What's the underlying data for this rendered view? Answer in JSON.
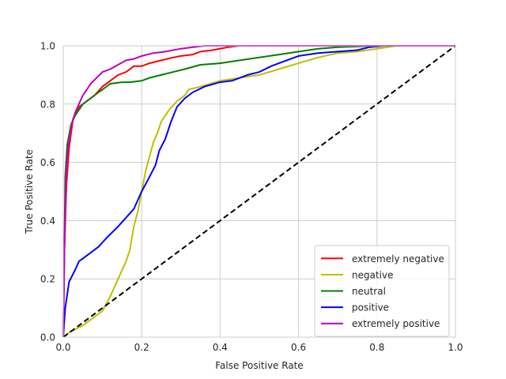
{
  "chart_data": {
    "type": "line",
    "title": "",
    "xlabel": "False Positive Rate",
    "ylabel": "True Positive Rate",
    "xlim": [
      0,
      1
    ],
    "ylim": [
      0,
      1
    ],
    "xticks": [
      "0.0",
      "0.2",
      "0.4",
      "0.6",
      "0.8",
      "1.0"
    ],
    "yticks": [
      "0.0",
      "0.2",
      "0.4",
      "0.6",
      "0.8",
      "1.0"
    ],
    "grid": true,
    "legend_position": "lower-right",
    "series": [
      {
        "name": "extremely negative",
        "color": "#ff0000",
        "points": [
          [
            0,
            0
          ],
          [
            0.003,
            0.3
          ],
          [
            0.008,
            0.52
          ],
          [
            0.015,
            0.65
          ],
          [
            0.025,
            0.75
          ],
          [
            0.04,
            0.79
          ],
          [
            0.06,
            0.81
          ],
          [
            0.08,
            0.83
          ],
          [
            0.1,
            0.86
          ],
          [
            0.12,
            0.88
          ],
          [
            0.14,
            0.9
          ],
          [
            0.16,
            0.91
          ],
          [
            0.18,
            0.93
          ],
          [
            0.2,
            0.93
          ],
          [
            0.22,
            0.94
          ],
          [
            0.25,
            0.95
          ],
          [
            0.28,
            0.96
          ],
          [
            0.3,
            0.965
          ],
          [
            0.33,
            0.97
          ],
          [
            0.35,
            0.98
          ],
          [
            0.38,
            0.985
          ],
          [
            0.42,
            0.995
          ],
          [
            0.45,
            1.0
          ],
          [
            0.6,
            1.0
          ],
          [
            0.8,
            1.0
          ],
          [
            1.0,
            1.0
          ]
        ]
      },
      {
        "name": "negative",
        "color": "#bfbf00",
        "points": [
          [
            0,
            0
          ],
          [
            0.02,
            0.02
          ],
          [
            0.05,
            0.04
          ],
          [
            0.08,
            0.07
          ],
          [
            0.1,
            0.09
          ],
          [
            0.12,
            0.14
          ],
          [
            0.14,
            0.2
          ],
          [
            0.16,
            0.26
          ],
          [
            0.17,
            0.3
          ],
          [
            0.18,
            0.38
          ],
          [
            0.19,
            0.43
          ],
          [
            0.2,
            0.5
          ],
          [
            0.21,
            0.57
          ],
          [
            0.22,
            0.62
          ],
          [
            0.23,
            0.67
          ],
          [
            0.24,
            0.7
          ],
          [
            0.25,
            0.74
          ],
          [
            0.27,
            0.78
          ],
          [
            0.29,
            0.81
          ],
          [
            0.31,
            0.83
          ],
          [
            0.32,
            0.85
          ],
          [
            0.35,
            0.86
          ],
          [
            0.4,
            0.88
          ],
          [
            0.45,
            0.89
          ],
          [
            0.5,
            0.9
          ],
          [
            0.55,
            0.92
          ],
          [
            0.6,
            0.94
          ],
          [
            0.65,
            0.96
          ],
          [
            0.7,
            0.975
          ],
          [
            0.75,
            0.98
          ],
          [
            0.8,
            0.99
          ],
          [
            0.85,
            1.0
          ],
          [
            1.0,
            1.0
          ]
        ]
      },
      {
        "name": "neutral",
        "color": "#008000",
        "points": [
          [
            0,
            0
          ],
          [
            0.005,
            0.55
          ],
          [
            0.01,
            0.66
          ],
          [
            0.02,
            0.73
          ],
          [
            0.03,
            0.76
          ],
          [
            0.05,
            0.8
          ],
          [
            0.07,
            0.82
          ],
          [
            0.09,
            0.84
          ],
          [
            0.1,
            0.85
          ],
          [
            0.12,
            0.87
          ],
          [
            0.15,
            0.875
          ],
          [
            0.17,
            0.875
          ],
          [
            0.2,
            0.88
          ],
          [
            0.22,
            0.89
          ],
          [
            0.25,
            0.9
          ],
          [
            0.28,
            0.91
          ],
          [
            0.31,
            0.92
          ],
          [
            0.35,
            0.935
          ],
          [
            0.4,
            0.94
          ],
          [
            0.45,
            0.95
          ],
          [
            0.5,
            0.96
          ],
          [
            0.55,
            0.97
          ],
          [
            0.6,
            0.98
          ],
          [
            0.65,
            0.99
          ],
          [
            0.7,
            0.995
          ],
          [
            0.8,
            1.0
          ],
          [
            1.0,
            1.0
          ]
        ]
      },
      {
        "name": "positive",
        "color": "#0000ff",
        "points": [
          [
            0,
            0
          ],
          [
            0.005,
            0.1
          ],
          [
            0.015,
            0.19
          ],
          [
            0.03,
            0.23
          ],
          [
            0.04,
            0.26
          ],
          [
            0.06,
            0.28
          ],
          [
            0.09,
            0.31
          ],
          [
            0.11,
            0.34
          ],
          [
            0.14,
            0.38
          ],
          [
            0.16,
            0.41
          ],
          [
            0.18,
            0.44
          ],
          [
            0.2,
            0.5
          ],
          [
            0.22,
            0.55
          ],
          [
            0.235,
            0.59
          ],
          [
            0.245,
            0.64
          ],
          [
            0.26,
            0.68
          ],
          [
            0.275,
            0.74
          ],
          [
            0.29,
            0.79
          ],
          [
            0.31,
            0.82
          ],
          [
            0.33,
            0.84
          ],
          [
            0.36,
            0.86
          ],
          [
            0.4,
            0.875
          ],
          [
            0.43,
            0.88
          ],
          [
            0.47,
            0.9
          ],
          [
            0.5,
            0.91
          ],
          [
            0.53,
            0.93
          ],
          [
            0.55,
            0.94
          ],
          [
            0.6,
            0.965
          ],
          [
            0.65,
            0.975
          ],
          [
            0.7,
            0.98
          ],
          [
            0.75,
            0.985
          ],
          [
            0.78,
            0.995
          ],
          [
            0.82,
            1.0
          ],
          [
            1.0,
            1.0
          ]
        ]
      },
      {
        "name": "extremely positive",
        "color": "#bf00bf",
        "points": [
          [
            0,
            0
          ],
          [
            0.003,
            0.3
          ],
          [
            0.007,
            0.55
          ],
          [
            0.012,
            0.65
          ],
          [
            0.02,
            0.72
          ],
          [
            0.03,
            0.77
          ],
          [
            0.04,
            0.8
          ],
          [
            0.05,
            0.83
          ],
          [
            0.06,
            0.85
          ],
          [
            0.07,
            0.87
          ],
          [
            0.085,
            0.89
          ],
          [
            0.1,
            0.91
          ],
          [
            0.12,
            0.92
          ],
          [
            0.14,
            0.935
          ],
          [
            0.16,
            0.95
          ],
          [
            0.18,
            0.955
          ],
          [
            0.2,
            0.965
          ],
          [
            0.23,
            0.975
          ],
          [
            0.26,
            0.98
          ],
          [
            0.3,
            0.99
          ],
          [
            0.33,
            0.995
          ],
          [
            0.36,
            1.0
          ],
          [
            0.6,
            1.0
          ],
          [
            1.0,
            1.0
          ]
        ]
      },
      {
        "name": "",
        "color": "#000000",
        "dashed": true,
        "in_legend": false,
        "points": [
          [
            0,
            0
          ],
          [
            1,
            1
          ]
        ]
      }
    ]
  }
}
